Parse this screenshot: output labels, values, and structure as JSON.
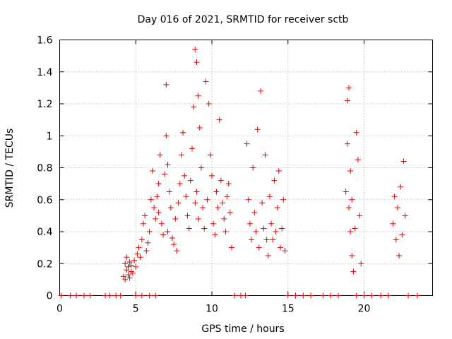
{
  "chart_data": {
    "type": "scatter",
    "title": "Day 016 of 2021, SRMTID for receiver sctb",
    "xlabel": "GPS time / hours",
    "ylabel": "SRMTID / TECUs",
    "xlim": [
      0,
      24.5
    ],
    "ylim": [
      0,
      1.6
    ],
    "xticks": [
      0,
      5,
      10,
      15,
      20
    ],
    "yticks": [
      0,
      0.2,
      0.4,
      0.6,
      0.8,
      1,
      1.2,
      1.4,
      1.6
    ],
    "ytick_labels": [
      "0",
      "0.2",
      "0.4",
      "0.6",
      "0.8",
      "1",
      "1.2",
      "1.4",
      "1.6"
    ],
    "grid": true,
    "marker": "+",
    "color": "#e00000",
    "series": [
      {
        "name": "SRMTID",
        "x": [
          4.2,
          4.3,
          4.3,
          4.4,
          4.4,
          4.5,
          4.5,
          4.6,
          4.6,
          4.7,
          4.7,
          4.8,
          4.9,
          5.0,
          5.1,
          5.2,
          5.3,
          5.4,
          5.5,
          5.6,
          5.7,
          5.8,
          5.9,
          6.0,
          6.1,
          6.2,
          6.3,
          6.4,
          6.5,
          6.5,
          6.6,
          6.7,
          6.8,
          6.9,
          7.0,
          7.0,
          7.1,
          7.1,
          7.2,
          7.3,
          7.4,
          7.5,
          7.6,
          7.7,
          7.8,
          7.9,
          8.0,
          8.1,
          8.2,
          8.3,
          8.4,
          8.5,
          8.6,
          8.7,
          8.8,
          8.9,
          8.9,
          9.0,
          9.0,
          9.1,
          9.1,
          9.2,
          9.3,
          9.4,
          9.5,
          9.6,
          9.7,
          9.8,
          9.9,
          10.0,
          10.1,
          10.2,
          10.3,
          10.4,
          10.5,
          10.6,
          10.7,
          10.8,
          10.9,
          11.0,
          11.1,
          11.2,
          11.3,
          12.3,
          12.4,
          12.5,
          12.6,
          12.7,
          12.8,
          12.9,
          13.0,
          13.1,
          13.2,
          13.3,
          13.4,
          13.5,
          13.6,
          13.7,
          13.8,
          13.9,
          14.0,
          14.1,
          14.2,
          14.3,
          14.4,
          14.5,
          14.6,
          14.7,
          14.8,
          18.8,
          18.9,
          18.9,
          19.0,
          19.0,
          19.1,
          19.1,
          19.2,
          19.2,
          19.3,
          19.4,
          19.5,
          19.6,
          19.7,
          19.8,
          21.9,
          22.0,
          22.1,
          22.2,
          22.3,
          22.4,
          22.5,
          22.6,
          22.7,
          0.1,
          0.7,
          1.1,
          1.6,
          2.0,
          3.0,
          3.3,
          3.7,
          4.0,
          5.0,
          5.4,
          5.9,
          6.3,
          11.5,
          11.9,
          12.2,
          15.0,
          15.5,
          16.0,
          16.5,
          17.3,
          17.8,
          18.3,
          19.5,
          20.0,
          20.5,
          21.1,
          21.6,
          22.9,
          23.5
        ],
        "y": [
          0.12,
          0.2,
          0.1,
          0.16,
          0.24,
          0.13,
          0.18,
          0.11,
          0.21,
          0.15,
          0.19,
          0.14,
          0.22,
          0.18,
          0.26,
          0.3,
          0.24,
          0.35,
          0.45,
          0.5,
          0.28,
          0.33,
          0.4,
          0.6,
          0.78,
          0.55,
          0.48,
          0.62,
          0.7,
          0.52,
          0.88,
          0.45,
          0.38,
          0.76,
          1.32,
          1.0,
          0.82,
          0.4,
          0.65,
          0.55,
          0.36,
          0.32,
          0.48,
          0.28,
          0.58,
          0.7,
          0.88,
          1.02,
          0.75,
          0.62,
          0.5,
          0.42,
          0.72,
          0.92,
          1.18,
          0.58,
          1.54,
          1.46,
          0.65,
          1.25,
          0.48,
          1.05,
          0.8,
          0.55,
          0.42,
          1.34,
          0.6,
          1.2,
          0.88,
          0.75,
          0.45,
          0.38,
          0.65,
          0.55,
          1.1,
          0.72,
          0.58,
          0.48,
          0.4,
          0.62,
          0.7,
          0.52,
          0.3,
          0.95,
          0.6,
          0.45,
          0.35,
          0.8,
          0.52,
          0.4,
          1.04,
          0.3,
          1.28,
          0.58,
          0.42,
          0.88,
          0.35,
          0.25,
          0.62,
          0.45,
          0.35,
          0.72,
          0.4,
          0.55,
          0.78,
          0.3,
          0.42,
          0.6,
          0.28,
          0.65,
          1.22,
          0.95,
          1.3,
          0.55,
          0.4,
          0.78,
          0.25,
          0.6,
          0.15,
          0.42,
          1.02,
          0.85,
          0.5,
          0.2,
          0.45,
          0.62,
          0.35,
          0.55,
          0.25,
          0.68,
          0.38,
          0.84,
          0.5,
          0,
          0,
          0,
          0,
          0,
          0,
          0,
          0,
          0,
          0,
          0,
          0,
          0,
          0,
          0,
          0,
          0,
          0,
          0,
          0,
          0,
          0,
          0,
          0,
          0,
          0,
          0,
          0,
          0,
          0
        ]
      }
    ]
  }
}
